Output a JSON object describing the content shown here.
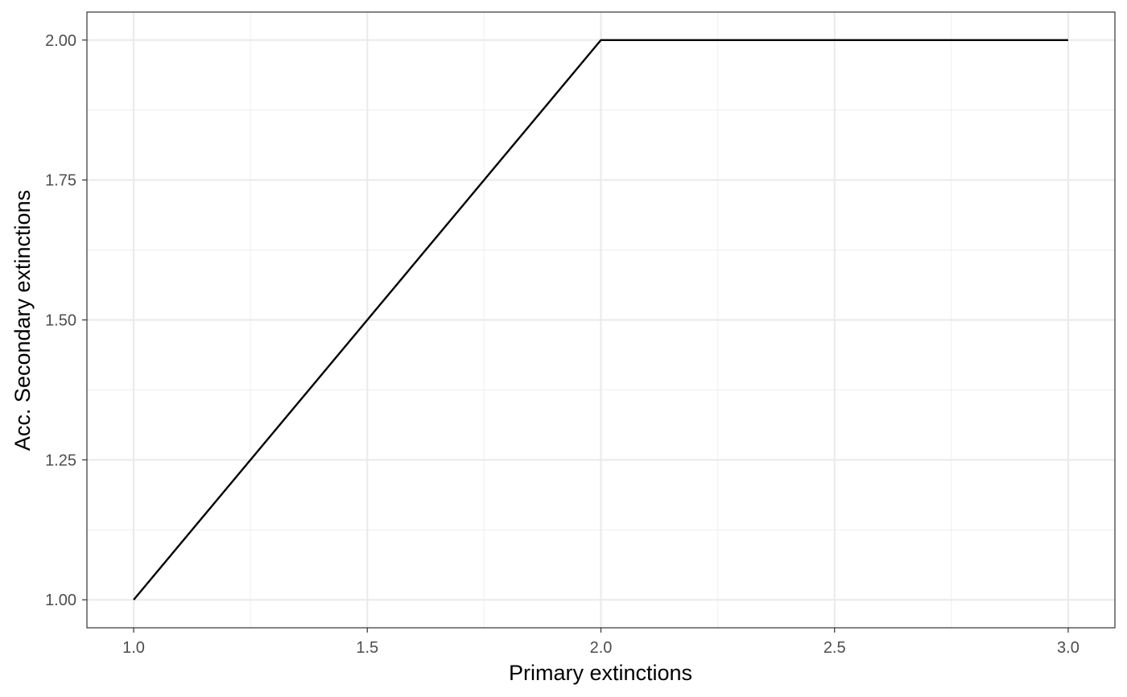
{
  "chart_data": {
    "type": "line",
    "title": "",
    "xlabel": "Primary extinctions",
    "ylabel": "Acc. Secondary extinctions",
    "xlim": [
      0.9,
      3.1
    ],
    "ylim": [
      0.95,
      2.05
    ],
    "x_ticks": [
      1.0,
      1.5,
      2.0,
      2.5,
      3.0
    ],
    "x_tick_labels": [
      "1.0",
      "1.5",
      "2.0",
      "2.5",
      "3.0"
    ],
    "x_minor_ticks": [
      1.25,
      1.75,
      2.25,
      2.75
    ],
    "y_ticks": [
      1.0,
      1.25,
      1.5,
      1.75,
      2.0
    ],
    "y_tick_labels": [
      "1.00",
      "1.25",
      "1.50",
      "1.75",
      "2.00"
    ],
    "y_minor_ticks": [
      1.125,
      1.375,
      1.625,
      1.875
    ],
    "grid": true,
    "series": [
      {
        "x": [
          1,
          2,
          3
        ],
        "y": [
          1,
          2,
          2
        ],
        "color": "#000000"
      }
    ]
  }
}
